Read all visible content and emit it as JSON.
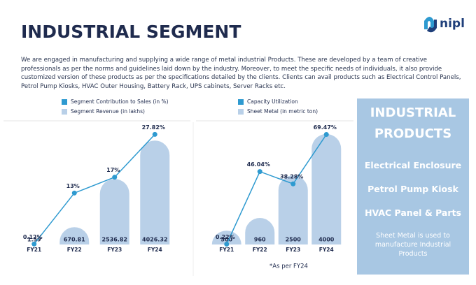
{
  "header": {
    "title": "INDUSTRIAL SEGMENT",
    "logo": "nipl"
  },
  "intro": "We are engaged in manufacturing and supplying a wide range of metal industrial Products. These are developed by a team of creative professionals as per the norms and guidelines laid down by the industry. Moreover, to meet the specific needs of individuals, it also provide customized version of these products as per the specifications detailed by the clients. Clients can avail products such as Electrical Control Panels, Petrol Pump Kiosks, HVAC Outer Housing, Battery Rack, UPS cabinets, Server Racks etc.",
  "chart_data": [
    {
      "type": "bar",
      "categories": [
        "FY21",
        "FY22",
        "FY23",
        "FY24"
      ],
      "ylim": [
        0,
        4600
      ],
      "y2lim": [
        0,
        30
      ],
      "series": [
        {
          "name": "Segment Contribution to Sales (in %)",
          "type": "line",
          "axis": "y2",
          "color": "#2e9ad0",
          "values": [
            0.12,
            13,
            17,
            27.82
          ],
          "value_labels": [
            "0.12%",
            "13%",
            "17%",
            "27.82%"
          ]
        },
        {
          "name": "Segment Revenue (in lakhs)",
          "type": "bar",
          "color": "#b9d0e8",
          "values": [
            1.59,
            670.81,
            2536.82,
            4026.32
          ]
        }
      ]
    },
    {
      "type": "bar",
      "categories": [
        "FY21",
        "FY22",
        "FY23",
        "FY24"
      ],
      "ylim": [
        0,
        4300
      ],
      "y2lim": [
        0,
        75
      ],
      "series": [
        {
          "name": "Capacity Utilization",
          "type": "line",
          "axis": "y2",
          "color": "#2e9ad0",
          "values": [
            0.22,
            46.04,
            38.28,
            69.47
          ],
          "value_labels": [
            "0.22%",
            "46.04%",
            "38.28%",
            "69.47%"
          ]
        },
        {
          "name": "Sheet Metal (in metric ton)",
          "type": "bar",
          "color": "#b9d0e8",
          "values": [
            500,
            960,
            2500,
            4000
          ]
        }
      ]
    }
  ],
  "footnote": "*As per FY24",
  "panel": {
    "title": "INDUSTRIAL PRODUCTS",
    "items": [
      "Electrical Enclosure",
      "Petrol Pump Kiosk",
      "HVAC Panel & Parts"
    ],
    "note": "Sheet Metal is used to manufacture Industrial Products"
  }
}
